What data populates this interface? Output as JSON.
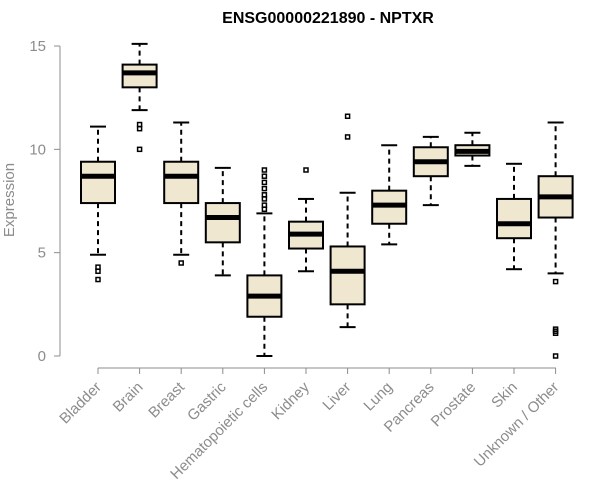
{
  "chart_data": {
    "type": "box",
    "title": "ENSG00000221890 - NPTXR",
    "xlabel": "",
    "ylabel": "Expression",
    "ylim": [
      0,
      15
    ],
    "yticks": [
      0,
      5,
      10,
      15
    ],
    "colors": {
      "box_fill": "#efe7cf",
      "box_stroke": "#000000",
      "axis": "#8c8c8c"
    },
    "series": [
      {
        "name": "Bladder",
        "whisker_low": 4.9,
        "q1": 7.4,
        "median": 8.7,
        "q3": 9.4,
        "whisker_high": 11.1,
        "outliers": [
          4.3,
          4.1,
          3.7
        ]
      },
      {
        "name": "Brain",
        "whisker_low": 11.9,
        "q1": 13.0,
        "median": 13.7,
        "q3": 14.1,
        "whisker_high": 15.1,
        "outliers": [
          11.2,
          11.0,
          10.0
        ]
      },
      {
        "name": "Breast",
        "whisker_low": 4.9,
        "q1": 7.4,
        "median": 8.7,
        "q3": 9.4,
        "whisker_high": 11.3,
        "outliers": [
          4.5
        ]
      },
      {
        "name": "Gastric",
        "whisker_low": 3.9,
        "q1": 5.5,
        "median": 6.7,
        "q3": 7.4,
        "whisker_high": 9.1,
        "outliers": []
      },
      {
        "name": "Hematopoietic cells",
        "whisker_low": 0.0,
        "q1": 1.9,
        "median": 2.9,
        "q3": 3.9,
        "whisker_high": 6.9,
        "outliers": [
          9.0,
          8.7,
          8.4,
          8.1,
          7.8,
          7.6,
          7.3,
          7.1
        ]
      },
      {
        "name": "Kidney",
        "whisker_low": 4.1,
        "q1": 5.2,
        "median": 5.9,
        "q3": 6.5,
        "whisker_high": 7.6,
        "outliers": [
          9.0
        ]
      },
      {
        "name": "Liver",
        "whisker_low": 1.4,
        "q1": 2.5,
        "median": 4.1,
        "q3": 5.3,
        "whisker_high": 7.9,
        "outliers": [
          11.6,
          10.6
        ]
      },
      {
        "name": "Lung",
        "whisker_low": 5.4,
        "q1": 6.4,
        "median": 7.3,
        "q3": 8.0,
        "whisker_high": 10.2,
        "outliers": []
      },
      {
        "name": "Pancreas",
        "whisker_low": 7.3,
        "q1": 8.7,
        "median": 9.4,
        "q3": 10.1,
        "whisker_high": 10.6,
        "outliers": []
      },
      {
        "name": "Prostate",
        "whisker_low": 9.2,
        "q1": 9.7,
        "median": 9.9,
        "q3": 10.2,
        "whisker_high": 10.8,
        "outliers": []
      },
      {
        "name": "Skin",
        "whisker_low": 4.2,
        "q1": 5.7,
        "median": 6.4,
        "q3": 7.6,
        "whisker_high": 9.3,
        "outliers": []
      },
      {
        "name": "Unknown / Other",
        "whisker_low": 4.0,
        "q1": 6.7,
        "median": 7.7,
        "q3": 8.7,
        "whisker_high": 11.3,
        "outliers": [
          3.6,
          1.3,
          1.2,
          1.1,
          0.0
        ]
      }
    ]
  }
}
